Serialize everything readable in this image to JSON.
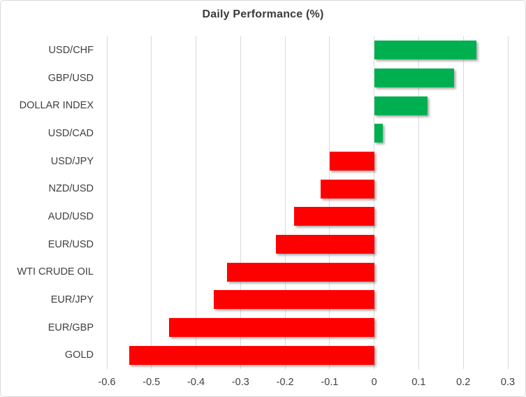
{
  "chart_data": {
    "type": "bar",
    "orientation": "horizontal",
    "title": "Daily Performance (%)",
    "categories": [
      "USD/CHF",
      "GBP/USD",
      "DOLLAR INDEX",
      "USD/CAD",
      "USD/JPY",
      "NZD/USD",
      "AUD/USD",
      "EUR/USD",
      "WTI CRUDE OIL",
      "EUR/JPY",
      "EUR/GBP",
      "GOLD"
    ],
    "values": [
      0.23,
      0.18,
      0.12,
      0.02,
      -0.1,
      -0.12,
      -0.18,
      -0.22,
      -0.33,
      -0.36,
      -0.46,
      -0.55
    ],
    "xlabel": "",
    "ylabel": "",
    "xlim": [
      -0.6,
      0.3
    ],
    "xticks": [
      "-0.6",
      "-0.5",
      "-0.4",
      "-0.3",
      "-0.2",
      "-0.1",
      "0",
      "0.1",
      "0.2",
      "0.3"
    ],
    "grid": "vertical-gridlines-on",
    "legend": "none",
    "colors": {
      "positive": "#00B050",
      "negative": "#FF0000",
      "gridline": "#D9D9D9",
      "text": "#404040",
      "title_text": "#3b3b3b",
      "frame_border": "#D9D9D9",
      "background": "#ffffff"
    }
  }
}
